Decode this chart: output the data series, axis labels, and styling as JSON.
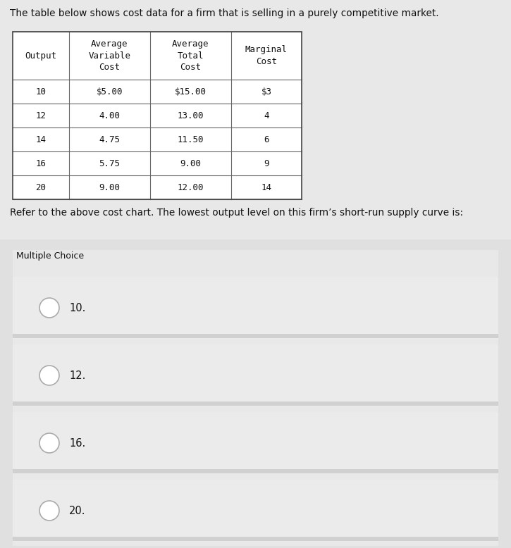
{
  "title_text": "The table below shows cost data for a firm that is selling in a purely competitive market.",
  "question_text": "Refer to the above cost chart. The lowest output level on this firm’s short-run supply curve is:",
  "mc_label": "Multiple Choice",
  "table_headers": [
    [
      "",
      "Average",
      "Average",
      ""
    ],
    [
      "",
      "Variable",
      "Total",
      "Marginal"
    ],
    [
      "Output",
      "Cost",
      "Cost",
      "Cost"
    ]
  ],
  "table_data": [
    [
      "10",
      "$5.00",
      "$15.00",
      "$3"
    ],
    [
      "12",
      "4.00",
      "13.00",
      "4"
    ],
    [
      "14",
      "4.75",
      "11.50",
      "6"
    ],
    [
      "16",
      "5.75",
      "9.00",
      "9"
    ],
    [
      "20",
      "9.00",
      "12.00",
      "14"
    ]
  ],
  "choices": [
    "10.",
    "12.",
    "16.",
    "20."
  ],
  "page_bg": "#e8e8e8",
  "mc_section_bg": "#e0e0e0",
  "choice_row_bg": "#e8e8e8",
  "choice_stripe_bg": "#d8d8d8",
  "table_bg": "#ffffff",
  "text_color": "#111111",
  "border_color": "#888888",
  "title_fontsize": 9.8,
  "question_fontsize": 9.8,
  "table_fontsize": 9.0,
  "choice_fontsize": 10.5,
  "mc_label_fontsize": 9.0
}
